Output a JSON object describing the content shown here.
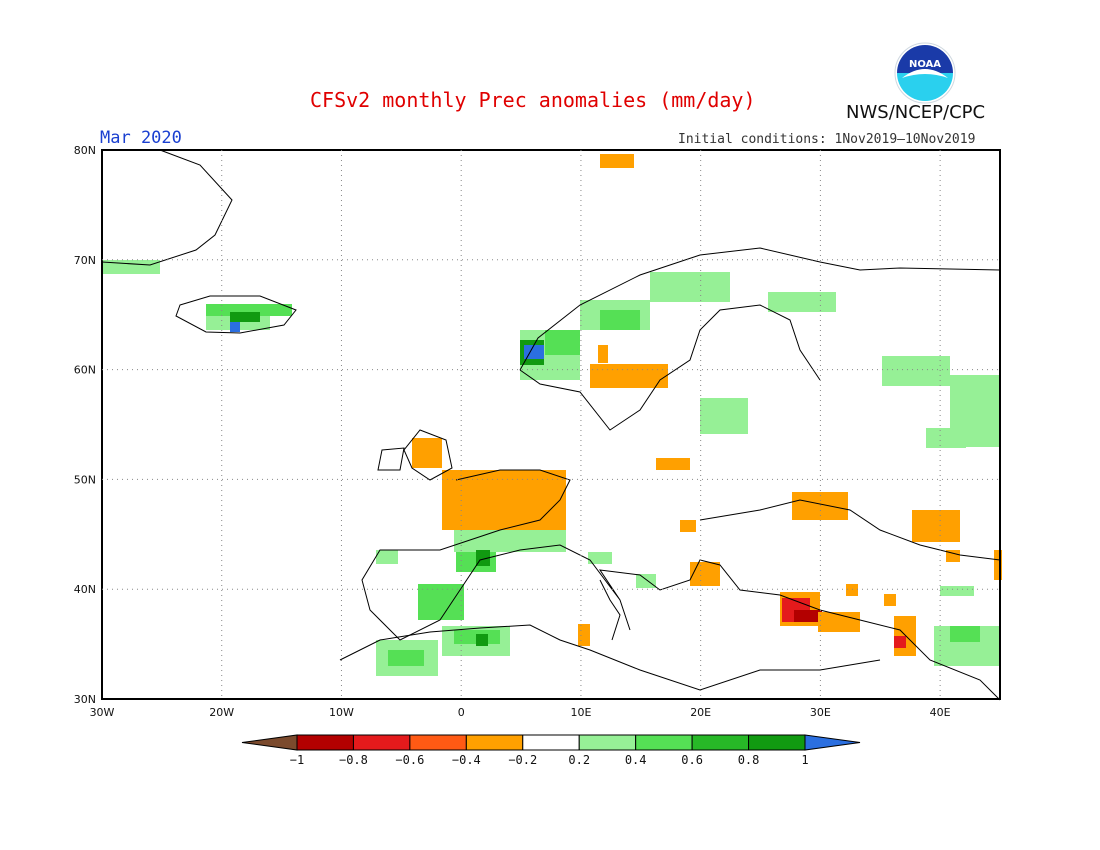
{
  "header": {
    "title": "CFSv2 monthly Prec anomalies (mm/day)",
    "agency": "NWS/NCEP/CPC",
    "month": "Mar 2020",
    "initial_conditions": "Initial conditions: 1Nov2019–10Nov2019",
    "logo_text": "NOAA"
  },
  "map": {
    "lon_range": [
      -30,
      45
    ],
    "lat_range": [
      30,
      80
    ],
    "lon_labels": [
      "30W",
      "20W",
      "10W",
      "0",
      "10E",
      "20E",
      "30E",
      "40E"
    ],
    "lat_labels": [
      "30N",
      "40N",
      "50N",
      "60N",
      "70N",
      "80N"
    ],
    "grid": "dotted",
    "legend_position": "bottom",
    "colorbar": {
      "ticks": [
        "−1",
        "−0.8",
        "−0.6",
        "−0.4",
        "−0.2",
        "0.2",
        "0.4",
        "0.6",
        "0.8",
        "1"
      ],
      "colors": [
        "#7b4a2d",
        "#b30000",
        "#e41a1c",
        "#ff5a14",
        "#ffa000",
        "#ffffff",
        "#96f096",
        "#55e055",
        "#27b827",
        "#119a11",
        "#2b6fe0"
      ]
    },
    "anomaly_regions": [
      {
        "name": "France",
        "value": -0.3
      },
      {
        "name": "Southern Norway",
        "value": 0.4
      },
      {
        "name": "Western Norway coast",
        "value": 1.0
      },
      {
        "name": "Southern Sweden",
        "value": -0.3
      },
      {
        "name": "Iceland",
        "value": 0.5
      },
      {
        "name": "Iberia",
        "value": 0.4
      },
      {
        "name": "Northwest Africa",
        "value": 0.4
      },
      {
        "name": "Western Turkey / Aegean",
        "value": -0.7
      },
      {
        "name": "Western Russia",
        "value": 0.3
      },
      {
        "name": "Ukraine",
        "value": -0.3
      },
      {
        "name": "Greece",
        "value": -0.3
      },
      {
        "name": "England",
        "value": -0.3
      }
    ]
  }
}
